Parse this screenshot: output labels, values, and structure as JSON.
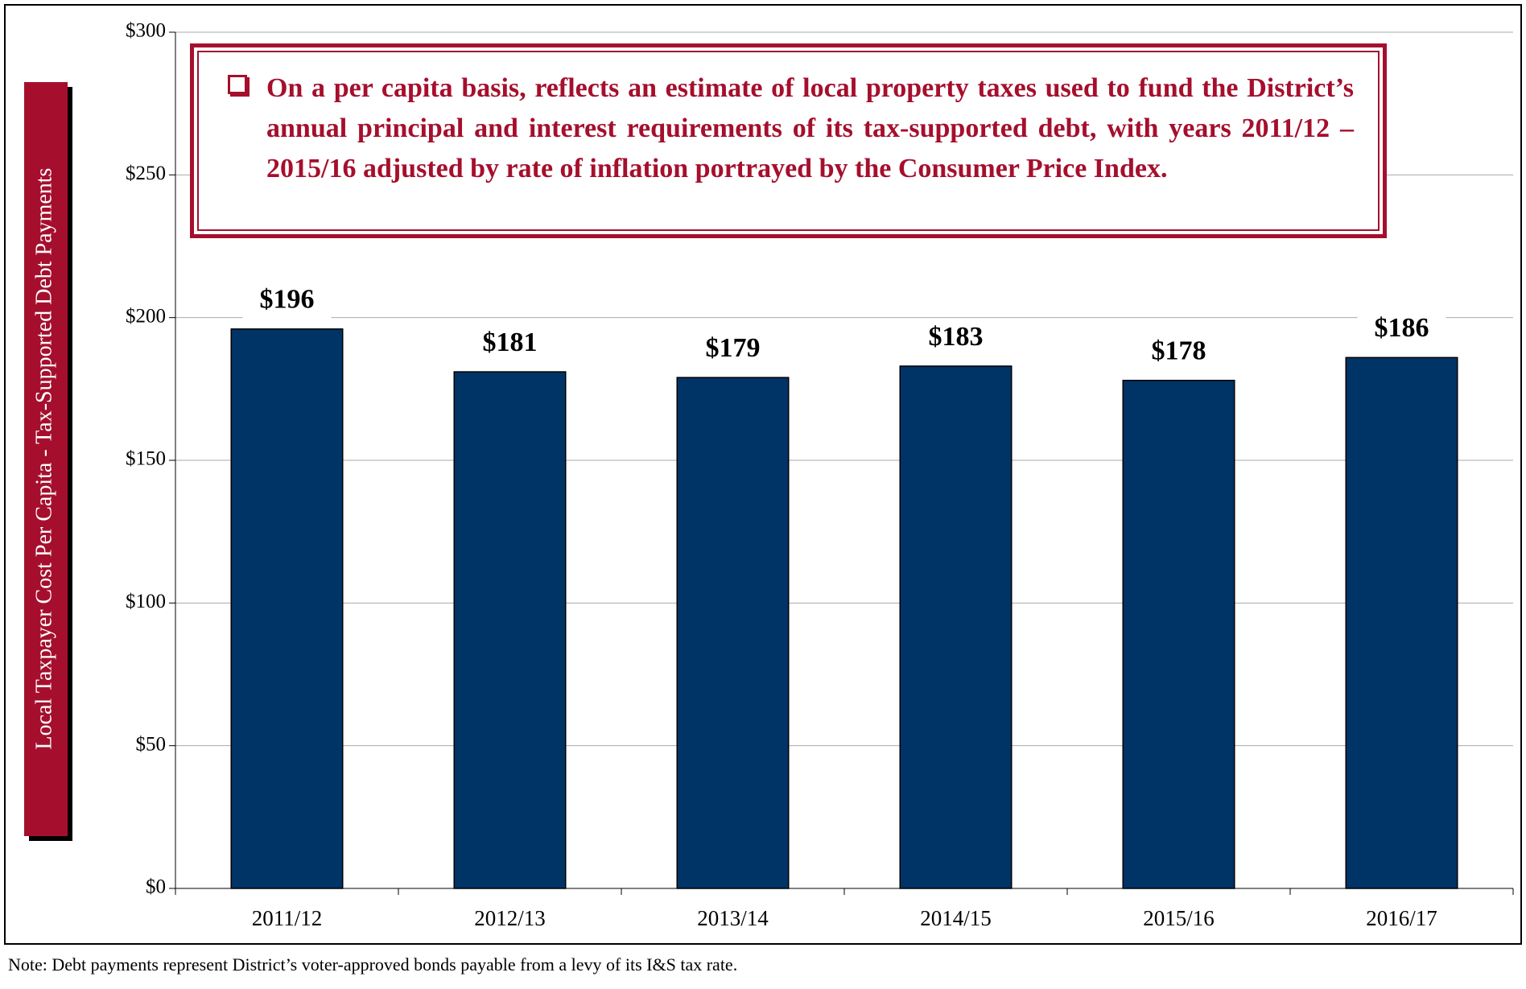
{
  "chart_data": {
    "type": "bar",
    "y_axis_label": "Local Taxpayer Cost Per Capita - Tax-Supported Debt Payments",
    "annotation": "On a per capita basis, reflects an estimate of local property taxes used to fund the District’s annual principal and interest requirements of its tax-supported debt, with years 2011/12 – 2015/16 adjusted by rate of inflation portrayed by the Consumer Price Index.",
    "note": "Note: Debt payments represent District’s voter-approved bonds payable from a levy of its I&S tax rate.",
    "categories": [
      "2011/12",
      "2012/13",
      "2013/14",
      "2014/15",
      "2015/16",
      "2016/17"
    ],
    "values": [
      196,
      181,
      179,
      183,
      178,
      186
    ],
    "value_labels": [
      "$196",
      "$181",
      "$179",
      "$183",
      "$178",
      "$186"
    ],
    "color": "#003366",
    "ylim": [
      0,
      300
    ],
    "yticks": [
      {
        "value": 0,
        "label": "$0"
      },
      {
        "value": 50,
        "label": "$50"
      },
      {
        "value": 100,
        "label": "$100"
      },
      {
        "value": 150,
        "label": "$150"
      },
      {
        "value": 200,
        "label": "$200"
      },
      {
        "value": 250,
        "label": "$250"
      },
      {
        "value": 300,
        "label": "$300"
      }
    ],
    "grid": true
  }
}
